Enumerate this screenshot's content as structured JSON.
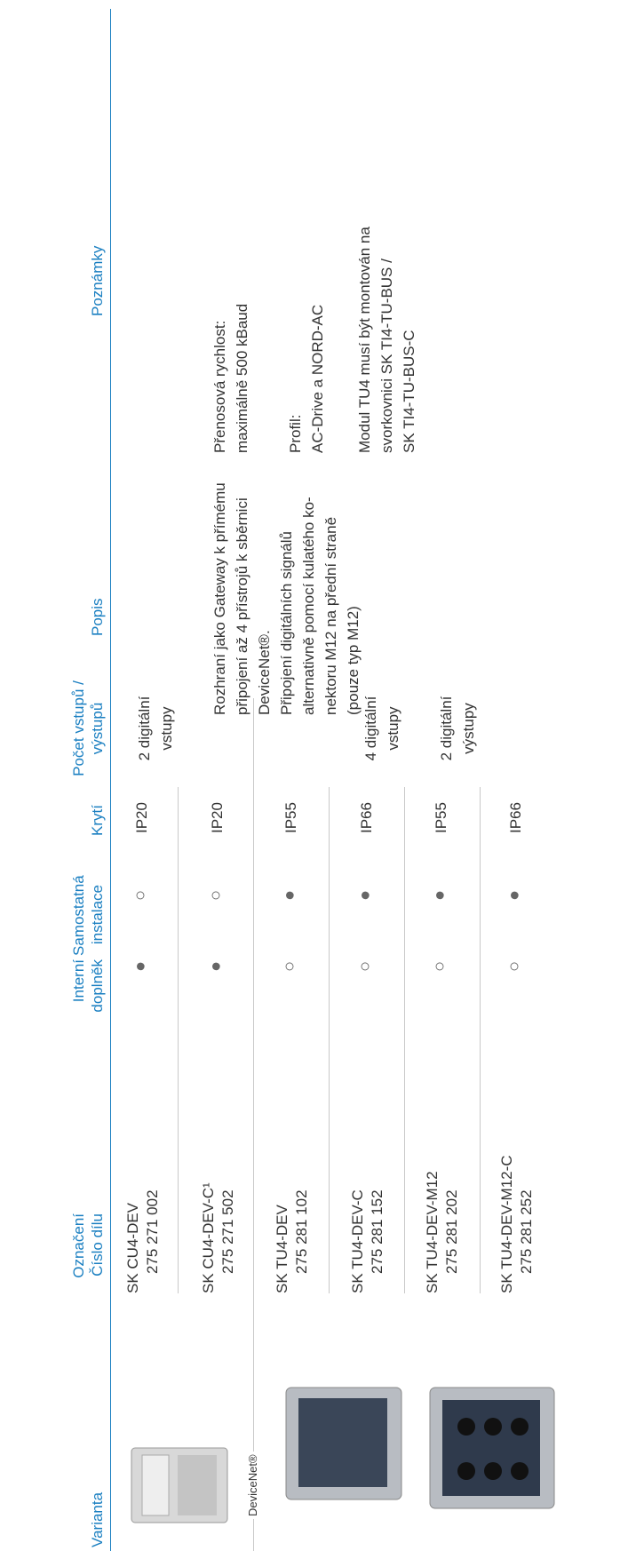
{
  "header": {
    "variant": "Varianta",
    "designation": "Označení\nČíslo dílu",
    "internal": "Interní\ndoplněk",
    "standalone": "Samostatná\ninstalace",
    "protection": "Krytí",
    "io": "Počet vstupů /\nvýstupů",
    "description": "Popis",
    "notes": "Poznámky"
  },
  "bus_label": "DeviceNet®",
  "rows": [
    {
      "designation": "SK CU4-DEV",
      "part": "275 271 002",
      "internal": "●",
      "standalone": "○",
      "protection": "IP20"
    },
    {
      "designation": "SK CU4-DEV-C¹",
      "part": "275 271 502",
      "internal": "●",
      "standalone": "○",
      "protection": "IP20"
    },
    {
      "designation": "SK TU4-DEV",
      "part": "275 281 102",
      "internal": "○",
      "standalone": "●",
      "protection": "IP55"
    },
    {
      "designation": "SK TU4-DEV-C",
      "part": "275 281 152",
      "internal": "○",
      "standalone": "●",
      "protection": "IP66"
    },
    {
      "designation": "SK TU4-DEV-M12",
      "part": "275 281 202",
      "internal": "○",
      "standalone": "●",
      "protection": "IP55"
    },
    {
      "designation": "SK TU4-DEV-M12-C",
      "part": "275 281 252",
      "internal": "○",
      "standalone": "●",
      "protection": "IP66"
    }
  ],
  "io_groups": [
    "2 digitální\nvstupy",
    "4 digitální\nvstupy",
    "2 digitální\nvýstupy"
  ],
  "description": "Rozhraní jako Gateway k přímému\npřipojení až 4 přístrojů k sběrnici\nDeviceNet®.\nPřipojení digitálních signálů\nalternativně pomocí kulatého ko-\nnektoru M12 na přední straně\n(pouze typ M12)",
  "notes": [
    "Přenosová rychlost:\nmaximálně 500 kBaud",
    "Profil:\nAC-Drive a NORD-AC",
    "Modul TU4 musí být montován na\nsvorkovnici SK TI4-TU-BUS /\nSK TI4-TU-BUS-C"
  ]
}
